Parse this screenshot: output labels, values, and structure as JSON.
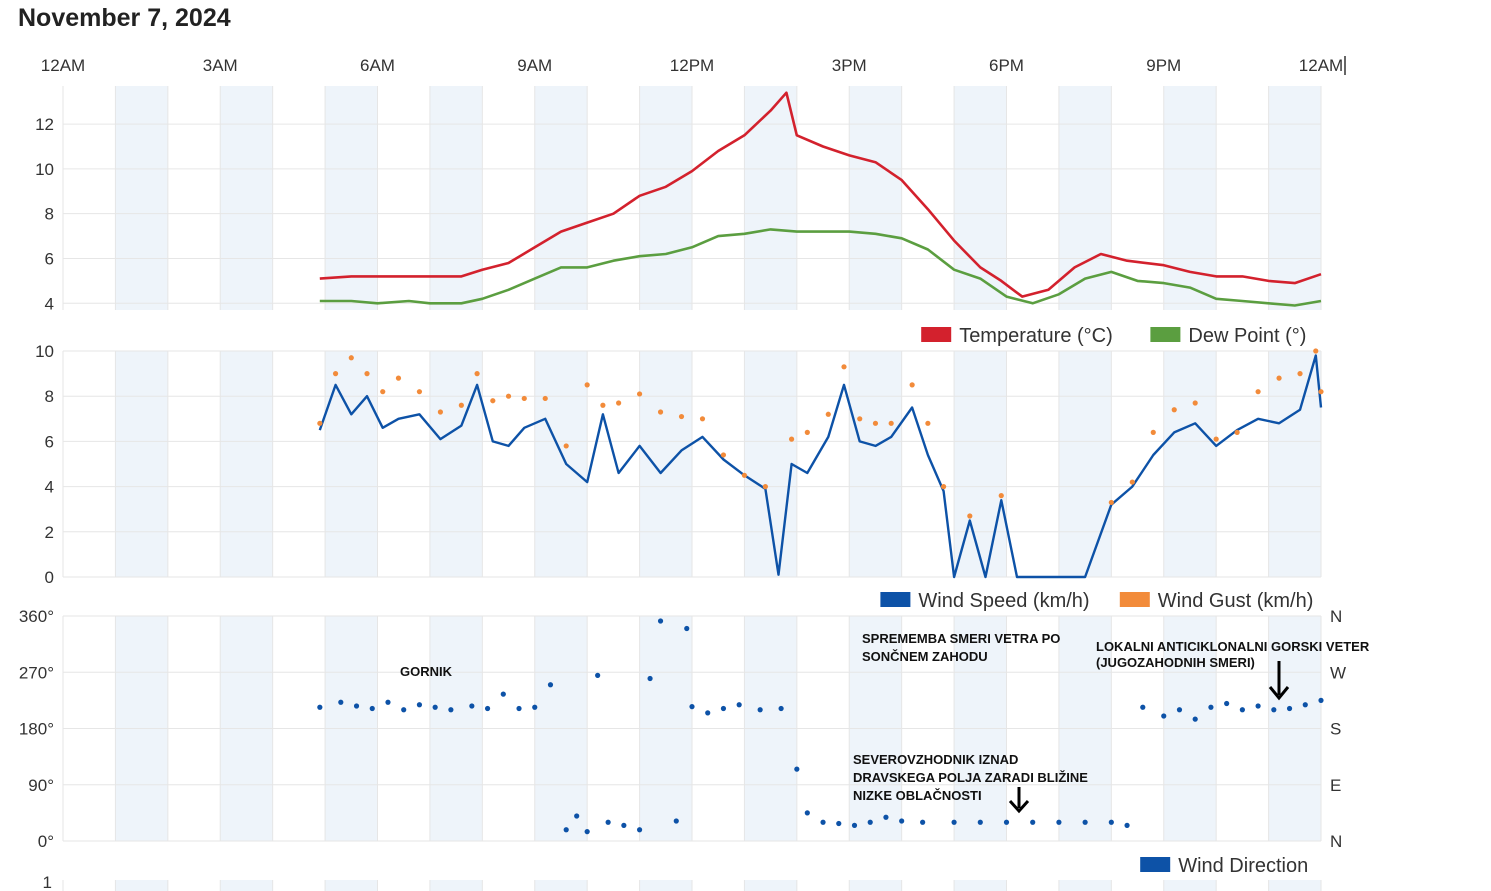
{
  "title": "November 7, 2024",
  "colors": {
    "temperature": "#d3212d",
    "dew_point": "#5b9e40",
    "wind_speed": "#0d52a7",
    "wind_gust": "#f28b3a",
    "wind_direction": "#0d52a7",
    "band": "#eef4fa",
    "grid": "#e6e6e6"
  },
  "x_axis": {
    "range_hours": [
      0,
      24
    ],
    "tick_labels": [
      "12AM",
      "3AM",
      "6AM",
      "9AM",
      "12PM",
      "3PM",
      "6PM",
      "9PM",
      "12AM"
    ]
  },
  "chart_data": [
    {
      "type": "line",
      "x_unit": "hours",
      "ylim": [
        3.7,
        13.7
      ],
      "y_ticks": [
        "4",
        "6",
        "8",
        "10",
        "12"
      ],
      "y_tick_values": [
        4,
        6,
        8,
        10,
        12
      ],
      "grid": true,
      "legend_placement": "bottom-right",
      "series": [
        {
          "name": "Temperature (°C)",
          "color": "#d3212d",
          "points": [
            [
              4.9,
              5.1
            ],
            [
              5.5,
              5.2
            ],
            [
              6.0,
              5.2
            ],
            [
              6.6,
              5.2
            ],
            [
              7.0,
              5.2
            ],
            [
              7.6,
              5.2
            ],
            [
              8.0,
              5.5
            ],
            [
              8.5,
              5.8
            ],
            [
              9.0,
              6.5
            ],
            [
              9.5,
              7.2
            ],
            [
              10.0,
              7.6
            ],
            [
              10.5,
              8.0
            ],
            [
              11.0,
              8.8
            ],
            [
              11.5,
              9.2
            ],
            [
              12.0,
              9.9
            ],
            [
              12.5,
              10.8
            ],
            [
              13.0,
              11.5
            ],
            [
              13.5,
              12.6
            ],
            [
              13.8,
              13.4
            ],
            [
              14.0,
              11.5
            ],
            [
              14.5,
              11.0
            ],
            [
              15.0,
              10.6
            ],
            [
              15.5,
              10.3
            ],
            [
              16.0,
              9.5
            ],
            [
              16.5,
              8.2
            ],
            [
              17.0,
              6.8
            ],
            [
              17.5,
              5.6
            ],
            [
              17.9,
              5.0
            ],
            [
              18.3,
              4.3
            ],
            [
              18.8,
              4.6
            ],
            [
              19.3,
              5.6
            ],
            [
              19.8,
              6.2
            ],
            [
              20.3,
              5.9
            ],
            [
              21.0,
              5.7
            ],
            [
              21.5,
              5.4
            ],
            [
              22.0,
              5.2
            ],
            [
              22.5,
              5.2
            ],
            [
              23.0,
              5.0
            ],
            [
              23.5,
              4.9
            ],
            [
              24.0,
              5.3
            ]
          ]
        },
        {
          "name": "Dew Point (°)",
          "color": "#5b9e40",
          "points": [
            [
              4.9,
              4.1
            ],
            [
              5.5,
              4.1
            ],
            [
              6.0,
              4.0
            ],
            [
              6.6,
              4.1
            ],
            [
              7.0,
              4.0
            ],
            [
              7.6,
              4.0
            ],
            [
              8.0,
              4.2
            ],
            [
              8.5,
              4.6
            ],
            [
              9.0,
              5.1
            ],
            [
              9.5,
              5.6
            ],
            [
              10.0,
              5.6
            ],
            [
              10.5,
              5.9
            ],
            [
              11.0,
              6.1
            ],
            [
              11.5,
              6.2
            ],
            [
              12.0,
              6.5
            ],
            [
              12.5,
              7.0
            ],
            [
              13.0,
              7.1
            ],
            [
              13.5,
              7.3
            ],
            [
              14.0,
              7.2
            ],
            [
              14.5,
              7.2
            ],
            [
              15.0,
              7.2
            ],
            [
              15.5,
              7.1
            ],
            [
              16.0,
              6.9
            ],
            [
              16.5,
              6.4
            ],
            [
              17.0,
              5.5
            ],
            [
              17.5,
              5.1
            ],
            [
              18.0,
              4.3
            ],
            [
              18.5,
              4.0
            ],
            [
              19.0,
              4.4
            ],
            [
              19.5,
              5.1
            ],
            [
              20.0,
              5.4
            ],
            [
              20.5,
              5.0
            ],
            [
              21.0,
              4.9
            ],
            [
              21.5,
              4.7
            ],
            [
              22.0,
              4.2
            ],
            [
              22.5,
              4.1
            ],
            [
              23.0,
              4.0
            ],
            [
              23.5,
              3.9
            ],
            [
              24.0,
              4.1
            ]
          ]
        }
      ]
    },
    {
      "type": "line",
      "x_unit": "hours",
      "ylim": [
        0,
        10
      ],
      "y_ticks": [
        "0",
        "2",
        "4",
        "6",
        "8",
        "10"
      ],
      "y_tick_values": [
        0,
        2,
        4,
        6,
        8,
        10
      ],
      "grid": true,
      "legend_placement": "bottom-right",
      "series": [
        {
          "name": "Wind Speed (km/h)",
          "color": "#0d52a7",
          "points": [
            [
              4.9,
              6.5
            ],
            [
              5.2,
              8.5
            ],
            [
              5.5,
              7.2
            ],
            [
              5.8,
              8.0
            ],
            [
              6.1,
              6.6
            ],
            [
              6.4,
              7.0
            ],
            [
              6.8,
              7.2
            ],
            [
              7.2,
              6.1
            ],
            [
              7.6,
              6.7
            ],
            [
              7.9,
              8.5
            ],
            [
              8.2,
              6.0
            ],
            [
              8.5,
              5.8
            ],
            [
              8.8,
              6.6
            ],
            [
              9.2,
              7.0
            ],
            [
              9.6,
              5.0
            ],
            [
              10.0,
              4.2
            ],
            [
              10.3,
              7.2
            ],
            [
              10.6,
              4.6
            ],
            [
              11.0,
              5.8
            ],
            [
              11.4,
              4.6
            ],
            [
              11.8,
              5.6
            ],
            [
              12.2,
              6.2
            ],
            [
              12.6,
              5.2
            ],
            [
              13.0,
              4.5
            ],
            [
              13.4,
              3.9
            ],
            [
              13.65,
              0.1
            ],
            [
              13.9,
              5.0
            ],
            [
              14.2,
              4.6
            ],
            [
              14.6,
              6.2
            ],
            [
              14.9,
              8.5
            ],
            [
              15.2,
              6.0
            ],
            [
              15.5,
              5.8
            ],
            [
              15.8,
              6.2
            ],
            [
              16.2,
              7.5
            ],
            [
              16.5,
              5.4
            ],
            [
              16.8,
              3.8
            ],
            [
              17.0,
              0.0
            ],
            [
              17.3,
              2.5
            ],
            [
              17.6,
              0.0
            ],
            [
              17.9,
              3.4
            ],
            [
              18.2,
              0.0
            ],
            [
              19.0,
              0.0
            ],
            [
              19.5,
              0.0
            ],
            [
              20.0,
              3.2
            ],
            [
              20.4,
              4.0
            ],
            [
              20.8,
              5.4
            ],
            [
              21.2,
              6.4
            ],
            [
              21.6,
              6.8
            ],
            [
              22.0,
              5.8
            ],
            [
              22.4,
              6.5
            ],
            [
              22.8,
              7.0
            ],
            [
              23.2,
              6.8
            ],
            [
              23.6,
              7.4
            ],
            [
              23.9,
              9.8
            ],
            [
              24.0,
              7.5
            ]
          ]
        },
        {
          "name": "Wind Gust (km/h)",
          "color": "#f28b3a",
          "points": [
            [
              4.9,
              6.8
            ],
            [
              5.2,
              9.0
            ],
            [
              5.5,
              9.7
            ],
            [
              5.8,
              9.0
            ],
            [
              6.1,
              8.2
            ],
            [
              6.4,
              8.8
            ],
            [
              6.8,
              8.2
            ],
            [
              7.2,
              7.3
            ],
            [
              7.6,
              7.6
            ],
            [
              7.9,
              9.0
            ],
            [
              8.2,
              7.8
            ],
            [
              8.5,
              8.0
            ],
            [
              8.8,
              7.9
            ],
            [
              9.2,
              7.9
            ],
            [
              9.6,
              5.8
            ],
            [
              10.0,
              8.5
            ],
            [
              10.3,
              7.6
            ],
            [
              10.6,
              7.7
            ],
            [
              11.0,
              8.1
            ],
            [
              11.4,
              7.3
            ],
            [
              11.8,
              7.1
            ],
            [
              12.2,
              7.0
            ],
            [
              12.6,
              5.4
            ],
            [
              13.0,
              4.5
            ],
            [
              13.4,
              4.0
            ],
            [
              13.9,
              6.1
            ],
            [
              14.2,
              6.4
            ],
            [
              14.6,
              7.2
            ],
            [
              14.9,
              9.3
            ],
            [
              15.2,
              7.0
            ],
            [
              15.5,
              6.8
            ],
            [
              15.8,
              6.8
            ],
            [
              16.2,
              8.5
            ],
            [
              16.5,
              6.8
            ],
            [
              16.8,
              4.0
            ],
            [
              17.3,
              2.7
            ],
            [
              17.9,
              3.6
            ],
            [
              20.0,
              3.3
            ],
            [
              20.4,
              4.2
            ],
            [
              20.8,
              6.4
            ],
            [
              21.2,
              7.4
            ],
            [
              21.6,
              7.7
            ],
            [
              22.0,
              6.1
            ],
            [
              22.4,
              6.4
            ],
            [
              22.8,
              8.2
            ],
            [
              23.2,
              8.8
            ],
            [
              23.6,
              9.0
            ],
            [
              23.9,
              10.0
            ],
            [
              24.0,
              8.2
            ]
          ]
        }
      ]
    },
    {
      "type": "scatter",
      "x_unit": "hours",
      "ylim": [
        0,
        360
      ],
      "y_ticks": [
        "0°",
        "90°",
        "180°",
        "270°",
        "360°"
      ],
      "y_tick_values": [
        0,
        90,
        180,
        270,
        360
      ],
      "y_ticks_right": [
        "N",
        "E",
        "S",
        "W",
        "N"
      ],
      "grid": true,
      "legend_placement": "bottom-right",
      "series": [
        {
          "name": "Wind Direction",
          "color": "#0d52a7",
          "points": [
            [
              4.9,
              214
            ],
            [
              5.3,
              222
            ],
            [
              5.6,
              216
            ],
            [
              5.9,
              212
            ],
            [
              6.2,
              222
            ],
            [
              6.5,
              210
            ],
            [
              6.8,
              218
            ],
            [
              7.1,
              214
            ],
            [
              7.4,
              210
            ],
            [
              7.8,
              216
            ],
            [
              8.1,
              212
            ],
            [
              8.4,
              235
            ],
            [
              8.7,
              212
            ],
            [
              9.0,
              214
            ],
            [
              9.3,
              250
            ],
            [
              9.6,
              18
            ],
            [
              9.8,
              40
            ],
            [
              10.0,
              15
            ],
            [
              10.2,
              265
            ],
            [
              10.4,
              30
            ],
            [
              10.7,
              25
            ],
            [
              11.0,
              18
            ],
            [
              11.2,
              260
            ],
            [
              11.4,
              352
            ],
            [
              11.7,
              32
            ],
            [
              11.9,
              340
            ],
            [
              12.0,
              215
            ],
            [
              12.3,
              205
            ],
            [
              12.6,
              212
            ],
            [
              12.9,
              218
            ],
            [
              13.3,
              210
            ],
            [
              13.7,
              212
            ],
            [
              14.0,
              115
            ],
            [
              14.2,
              45
            ],
            [
              14.5,
              30
            ],
            [
              14.8,
              28
            ],
            [
              15.1,
              25
            ],
            [
              15.4,
              30
            ],
            [
              15.7,
              38
            ],
            [
              16.0,
              32
            ],
            [
              16.4,
              30
            ],
            [
              17.0,
              30
            ],
            [
              17.5,
              30
            ],
            [
              18.0,
              30
            ],
            [
              18.5,
              30
            ],
            [
              19.0,
              30
            ],
            [
              19.5,
              30
            ],
            [
              20.0,
              30
            ],
            [
              20.3,
              25
            ],
            [
              20.6,
              214
            ],
            [
              21.0,
              200
            ],
            [
              21.3,
              210
            ],
            [
              21.6,
              195
            ],
            [
              21.9,
              214
            ],
            [
              22.2,
              220
            ],
            [
              22.5,
              210
            ],
            [
              22.8,
              216
            ],
            [
              23.1,
              210
            ],
            [
              23.4,
              212
            ],
            [
              23.7,
              218
            ],
            [
              24.0,
              225
            ]
          ]
        }
      ]
    }
  ],
  "legends": {
    "temp": [
      "Temperature (°C)",
      "Dew Point (°)"
    ],
    "wind": [
      "Wind Speed (km/h)",
      "Wind Gust (km/h)"
    ],
    "dir": [
      "Wind Direction"
    ]
  },
  "fourth_chart_top_tick": "1",
  "annotations": {
    "gornik": "GORNIK",
    "sunset_line1": "SPREMEMBA SMERI VETRA PO",
    "sunset_line2": "SONČNEM ZAHODU",
    "anticyclonic_line1": "LOKALNI ANTICIKLONALNI GORSKI VETER",
    "anticyclonic_line2": "(JUGOZAHODNIH SMERI)",
    "ne_line1": "SEVEROVZHODNIK IZNAD",
    "ne_line2": "DRAVSKEGA POLJA ZARADI BLIŽINE",
    "ne_line3": "NIZKE OBLAČNOSTI"
  }
}
